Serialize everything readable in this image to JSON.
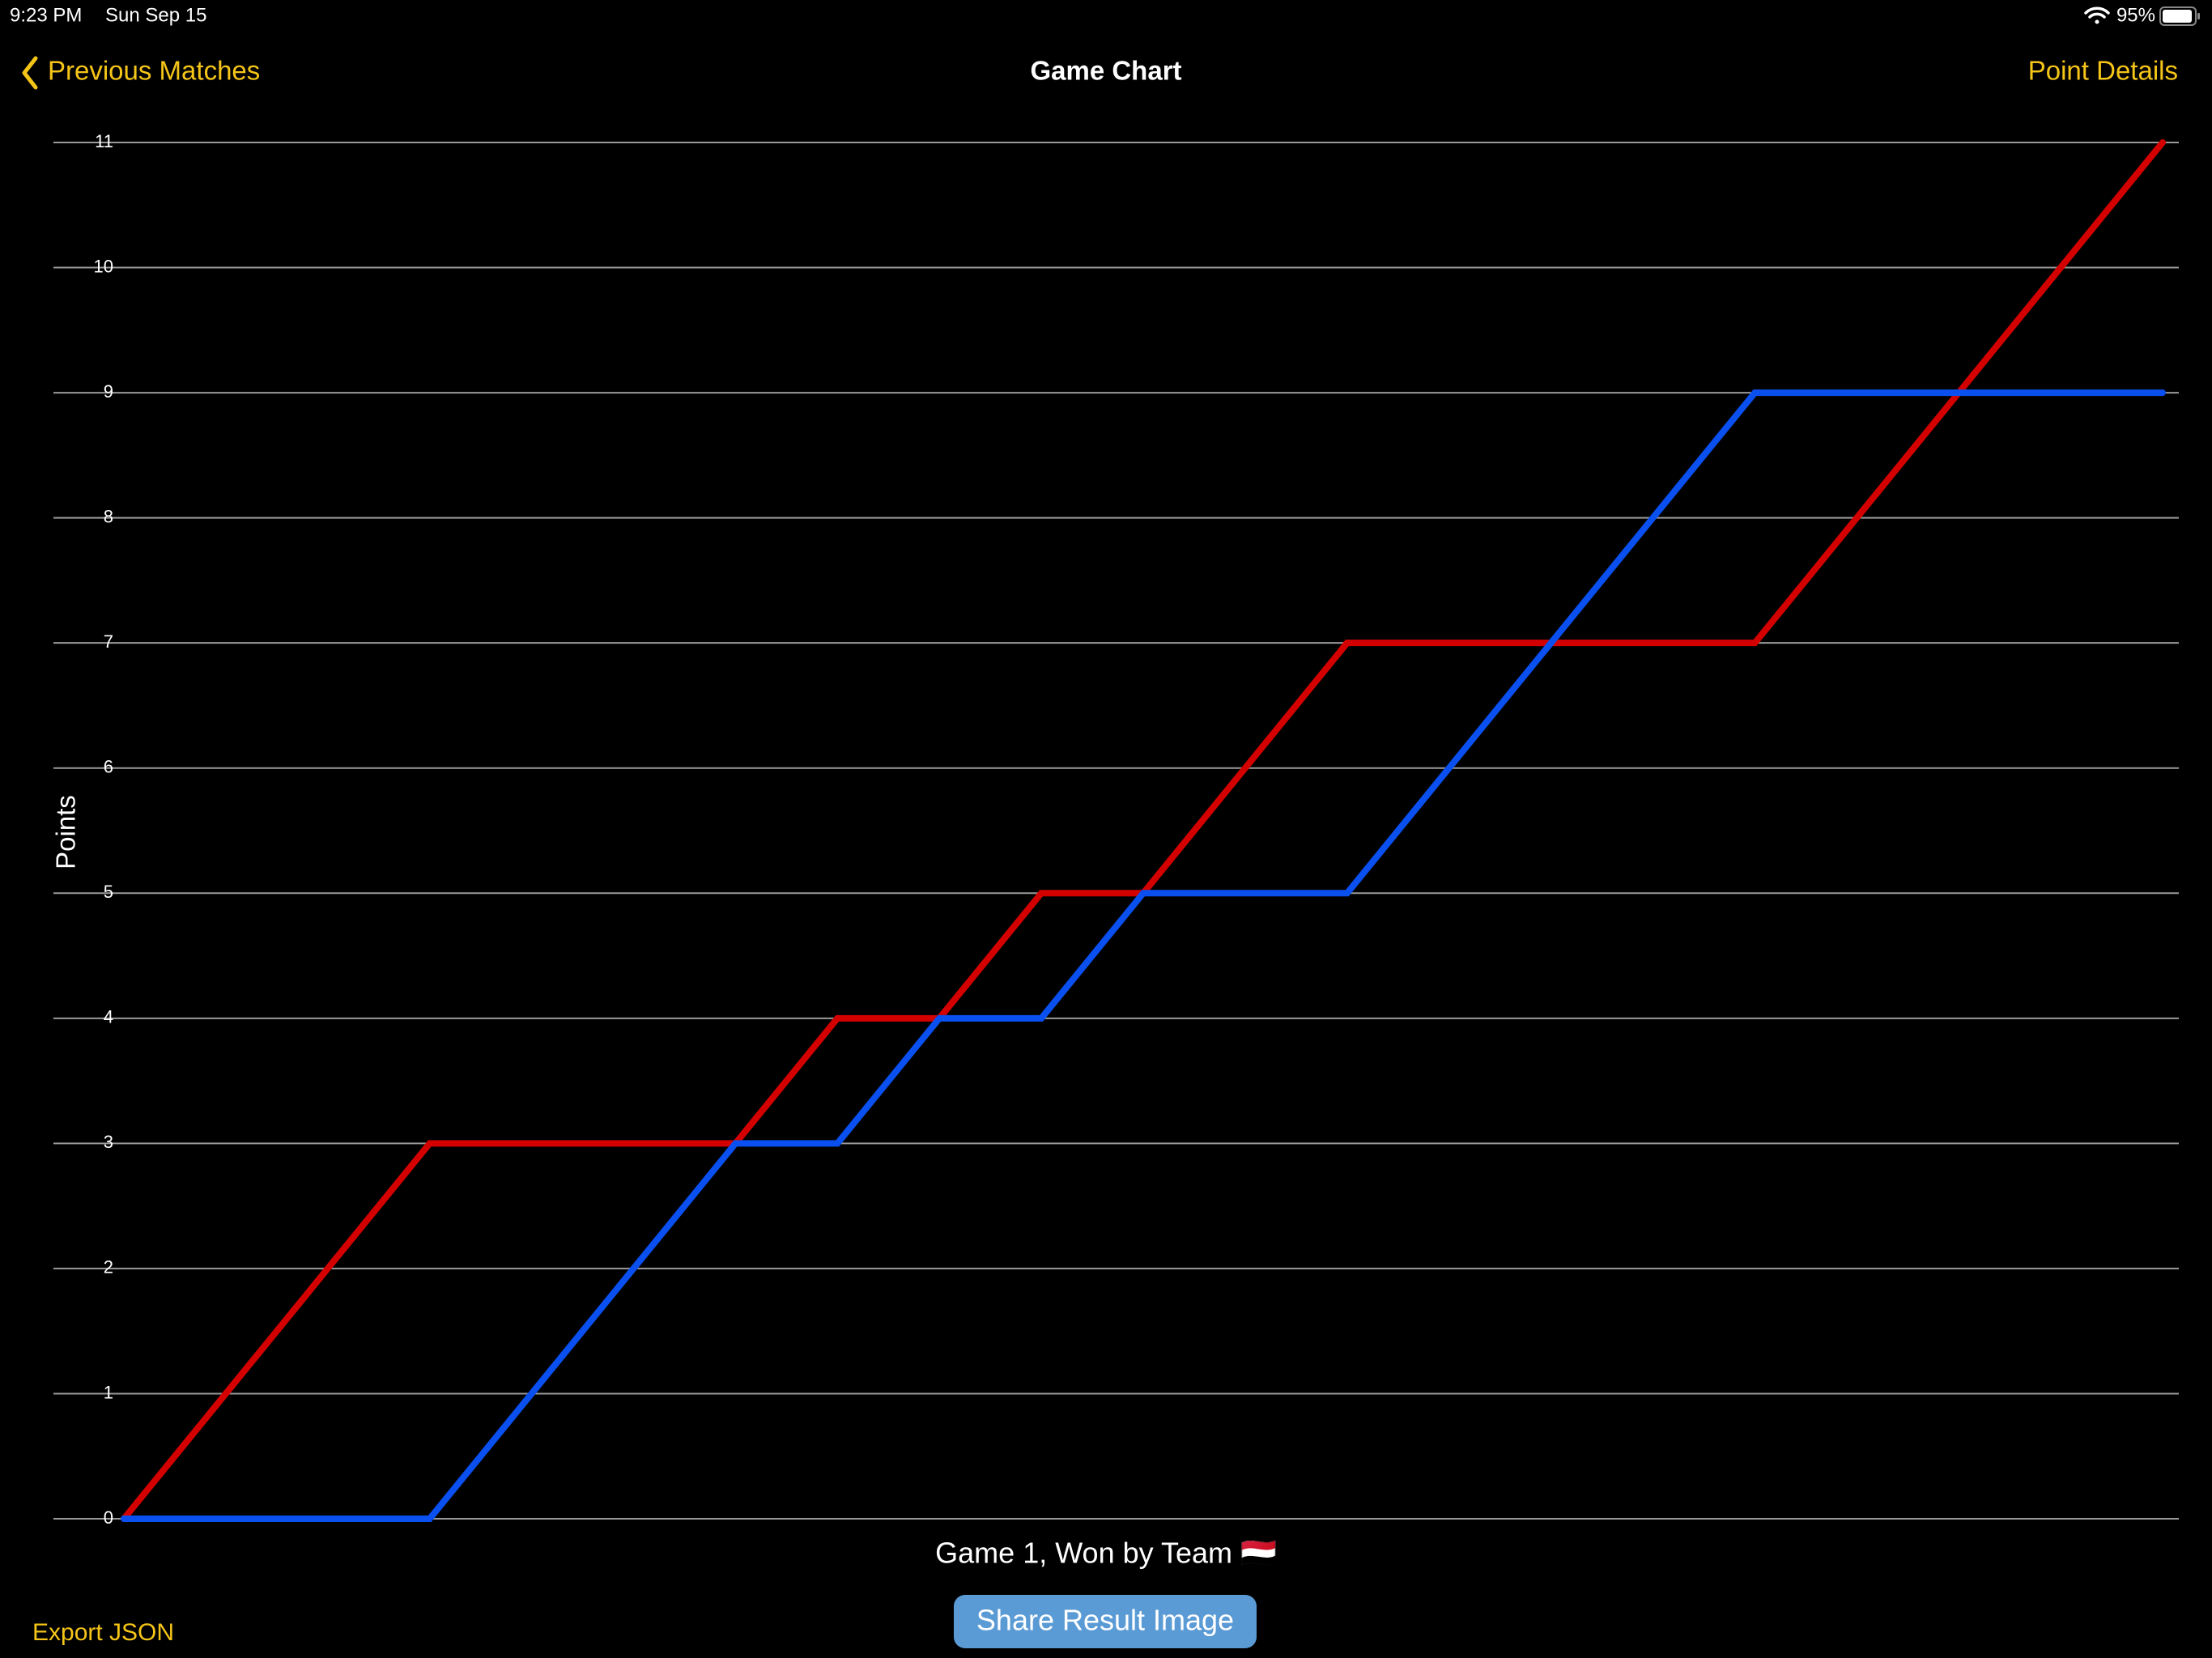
{
  "status_bar": {
    "time": "9:23 PM",
    "date": "Sun Sep 15",
    "battery": "95%"
  },
  "nav": {
    "back": "Previous Matches",
    "title": "Game Chart",
    "right": "Point Details"
  },
  "chart_data": {
    "type": "line",
    "ylabel": "Points",
    "xlabel": "Game 1, Won by Team 🇾🇪",
    "ylim": [
      0,
      11
    ],
    "yticks": [
      0,
      1,
      2,
      3,
      4,
      5,
      6,
      7,
      8,
      9,
      10,
      11
    ],
    "grid": true,
    "series": [
      {
        "color": "#d40000",
        "values": [
          0,
          1,
          2,
          3,
          3,
          3,
          3,
          4,
          4,
          5,
          5,
          6,
          7,
          7,
          7,
          7,
          7,
          8,
          9,
          10,
          11
        ]
      },
      {
        "color": "#0a50f0",
        "values": [
          0,
          0,
          0,
          0,
          1,
          2,
          3,
          3,
          4,
          4,
          5,
          5,
          5,
          6,
          7,
          8,
          9,
          9,
          9,
          9,
          9
        ]
      }
    ]
  },
  "footer": {
    "share": "Share Result Image",
    "export": "Export JSON"
  }
}
